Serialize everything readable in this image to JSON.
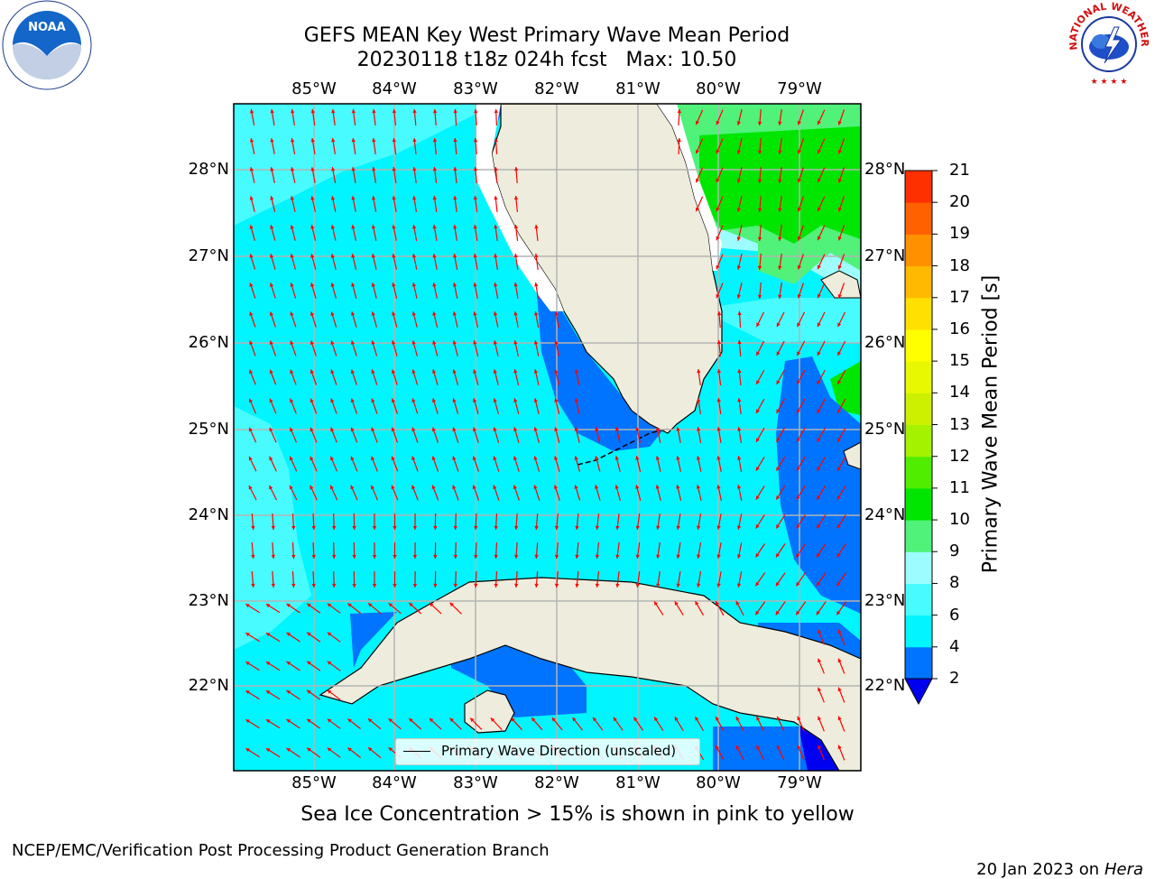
{
  "title": {
    "line1": "GEFS MEAN Key West Primary Wave Mean Period",
    "line2": "20230118 t18z 024h fcst   Max: 10.50"
  },
  "map": {
    "lon_labels": [
      "85°W",
      "84°W",
      "83°W",
      "82°W",
      "81°W",
      "80°W",
      "79°W"
    ],
    "lat_labels": [
      "28°N",
      "27°N",
      "26°N",
      "25°N",
      "24°N",
      "23°N",
      "22°N"
    ],
    "legend_text": "Primary Wave Direction (unscaled)",
    "arrow_color": "#ff0000",
    "land_color": "#eeecdc",
    "grid_color": "#b4b4b4"
  },
  "colorbar": {
    "title": "Primary Wave Mean Period [s]",
    "ticks": [
      "2",
      "4",
      "6",
      "8",
      "9",
      "10",
      "11",
      "12",
      "13",
      "14",
      "15",
      "16",
      "17",
      "18",
      "19",
      "20",
      "21"
    ],
    "colors": [
      "#0073ff",
      "#00f5ff",
      "#48fbff",
      "#9dfdfe",
      "#50f27a",
      "#00e600",
      "#50ed00",
      "#a4f200",
      "#ccf000",
      "#e8f800",
      "#ffff00",
      "#ffe000",
      "#ffba00",
      "#ff9000",
      "#ff6000",
      "#ff3000",
      "#ff0000"
    ],
    "extend_color": "#0000f0"
  },
  "subtitle": "Sea Ice Concentration > 15% is shown in pink to yellow",
  "footer": {
    "left": "NCEP/EMC/Verification Post Processing Product Generation Branch",
    "date": "20 Jan 2023 on ",
    "host": "Hera"
  },
  "logos": {
    "noaa": "NOAA",
    "nws_text": "NATIONAL WEATHER SERVICE"
  }
}
